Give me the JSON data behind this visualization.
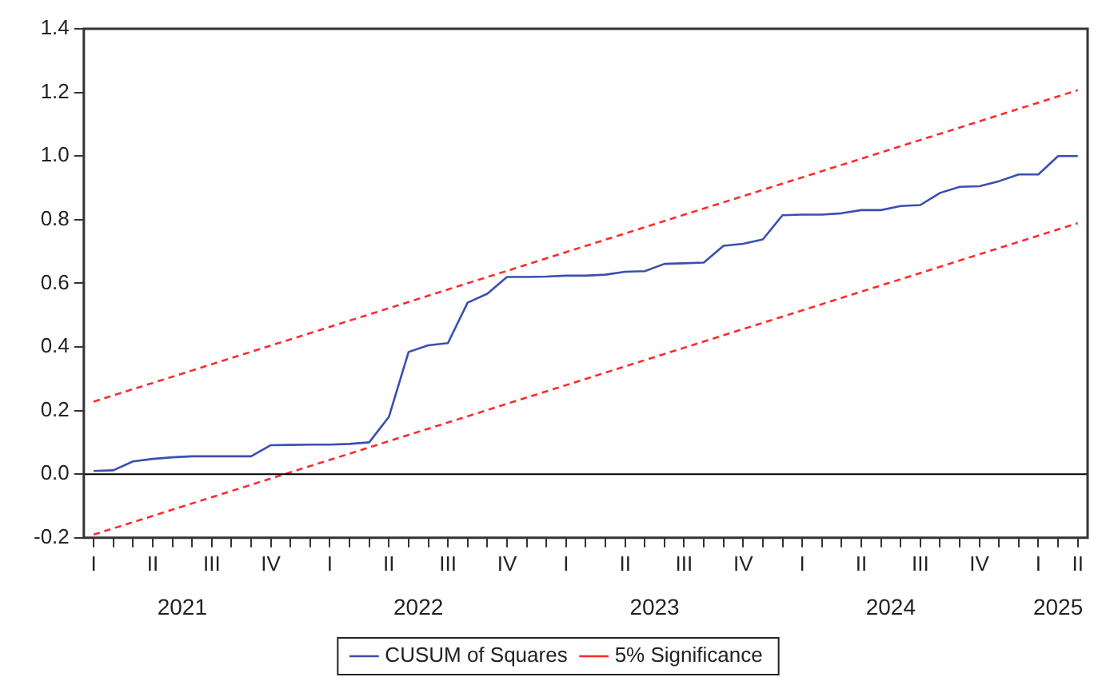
{
  "chart_data": {
    "type": "line",
    "categories": [
      "I",
      null,
      null,
      "II",
      null,
      null,
      "III",
      null,
      null,
      "IV",
      null,
      null,
      "I",
      null,
      null,
      "II",
      null,
      null,
      "III",
      null,
      null,
      "IV",
      null,
      null,
      "I",
      null,
      null,
      "II",
      null,
      null,
      "III",
      null,
      null,
      "IV",
      null,
      null,
      "I",
      null,
      null,
      "II",
      null,
      null,
      "III",
      null,
      null,
      "IV",
      null,
      null,
      "I",
      null,
      "II"
    ],
    "series": [
      {
        "name": "CUSUM of Squares",
        "color": "#3a4fb0",
        "line_style": "solid",
        "values": [
          0.01,
          0.012,
          0.04,
          0.048,
          0.053,
          0.056,
          0.056,
          0.056,
          0.056,
          0.091,
          0.092,
          0.093,
          0.093,
          0.095,
          0.1,
          0.18,
          0.384,
          0.405,
          0.412,
          0.539,
          0.567,
          0.62,
          0.62,
          0.621,
          0.624,
          0.624,
          0.627,
          0.636,
          0.638,
          0.661,
          0.663,
          0.665,
          0.718,
          0.724,
          0.738,
          0.814,
          0.816,
          0.816,
          0.82,
          0.83,
          0.83,
          0.843,
          0.846,
          0.884,
          0.903,
          0.905,
          0.921,
          0.942,
          0.942,
          1.0,
          1.0
        ]
      },
      {
        "name": "5% Significance",
        "color": "#ff2a2a",
        "line_style": "dashed",
        "values": [
          0.228,
          null,
          null,
          null,
          null,
          null,
          null,
          null,
          null,
          null,
          null,
          null,
          null,
          null,
          null,
          null,
          null,
          null,
          null,
          null,
          null,
          null,
          null,
          null,
          null,
          null,
          null,
          null,
          null,
          null,
          null,
          null,
          null,
          null,
          null,
          null,
          null,
          null,
          null,
          null,
          null,
          null,
          null,
          null,
          null,
          null,
          null,
          null,
          null,
          null,
          1.207
        ]
      },
      {
        "color": "#ff2a2a",
        "line_style": "dashed",
        "values": [
          -0.19,
          null,
          null,
          null,
          null,
          null,
          null,
          null,
          null,
          null,
          null,
          null,
          null,
          null,
          null,
          null,
          null,
          null,
          null,
          null,
          null,
          null,
          null,
          null,
          null,
          null,
          null,
          null,
          null,
          null,
          null,
          null,
          null,
          null,
          null,
          null,
          null,
          null,
          null,
          null,
          null,
          null,
          null,
          null,
          null,
          null,
          null,
          null,
          null,
          null,
          0.789
        ]
      }
    ],
    "ylim": [
      -0.2,
      1.4
    ],
    "yticks": [
      -0.2,
      {
        "value": 0,
        "label": "0.0"
      },
      0.2,
      0.4,
      0.6,
      0.8,
      {
        "value": 1,
        "label": "1.0"
      },
      1.2,
      1.4
    ],
    "ref_lines": [
      {
        "axis": "y",
        "value": 0,
        "color": "#000000"
      }
    ],
    "annotations": [
      "2021",
      "2022",
      "2023",
      "2024",
      "2025"
    ],
    "legend": "bottom",
    "grid": false,
    "marker": "none"
  }
}
